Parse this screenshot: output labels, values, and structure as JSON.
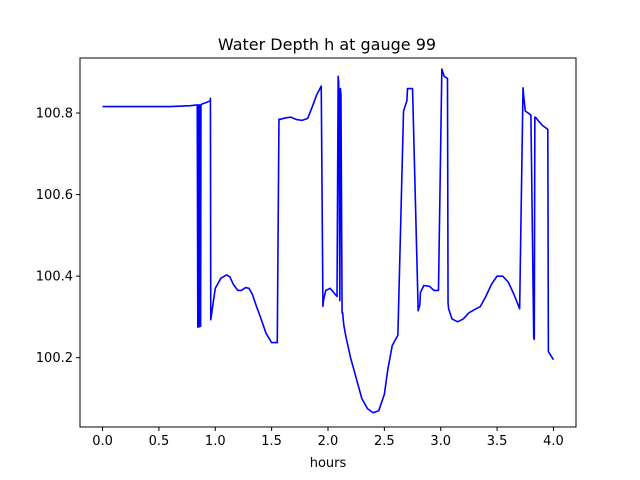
{
  "chart_data": {
    "type": "line",
    "title": "Water Depth h at gauge 99",
    "xlabel": "hours",
    "ylabel": "",
    "xlim": [
      -0.2,
      4.2
    ],
    "ylim": [
      100.03,
      100.935
    ],
    "x_ticks": [
      0.0,
      0.5,
      1.0,
      1.5,
      2.0,
      2.5,
      3.0,
      3.5,
      4.0
    ],
    "x_tick_labels": [
      "0.0",
      "0.5",
      "1.0",
      "1.5",
      "2.0",
      "2.5",
      "3.0",
      "3.5",
      "4.0"
    ],
    "y_ticks": [
      100.2,
      100.4,
      100.6,
      100.8
    ],
    "y_tick_labels": [
      "100.2",
      "100.4",
      "100.6",
      "100.8"
    ],
    "grid": false,
    "legend": "none",
    "series": [
      {
        "color": "#0000ff",
        "x": [
          0.0,
          0.3,
          0.6,
          0.78,
          0.84,
          0.845,
          0.85,
          0.853,
          0.857,
          0.86,
          0.865,
          0.87,
          0.873,
          0.88,
          0.92,
          0.955,
          0.957,
          0.96,
          1.0,
          1.05,
          1.1,
          1.13,
          1.16,
          1.2,
          1.23,
          1.27,
          1.3,
          1.33,
          1.36,
          1.4,
          1.45,
          1.5,
          1.55,
          1.565,
          1.57,
          1.62,
          1.67,
          1.72,
          1.77,
          1.82,
          1.86,
          1.9,
          1.94,
          1.955,
          1.96,
          1.98,
          2.02,
          2.05,
          2.08,
          2.09,
          2.095,
          2.105,
          2.11,
          2.115,
          2.125,
          2.13,
          2.14,
          2.16,
          2.2,
          2.25,
          2.3,
          2.35,
          2.4,
          2.45,
          2.5,
          2.53,
          2.57,
          2.62,
          2.67,
          2.7,
          2.705,
          2.75,
          2.8,
          2.815,
          2.82,
          2.85,
          2.9,
          2.94,
          2.98,
          3.01,
          3.025,
          3.03,
          3.06,
          3.065,
          3.07,
          3.1,
          3.15,
          3.2,
          3.25,
          3.3,
          3.35,
          3.4,
          3.45,
          3.5,
          3.55,
          3.6,
          3.65,
          3.7,
          3.73,
          3.735,
          3.75,
          3.8,
          3.825,
          3.83,
          3.835,
          3.84,
          3.87,
          3.9,
          3.95,
          3.955,
          4.0
        ],
        "values": [
          100.816,
          100.816,
          100.816,
          100.818,
          100.82,
          100.275,
          100.82,
          100.276,
          100.82,
          100.276,
          100.82,
          100.277,
          100.82,
          100.822,
          100.826,
          100.83,
          100.836,
          100.293,
          100.37,
          100.395,
          100.403,
          100.398,
          100.38,
          100.365,
          100.365,
          100.372,
          100.37,
          100.355,
          100.33,
          100.3,
          100.26,
          100.237,
          100.237,
          100.785,
          100.784,
          100.788,
          100.79,
          100.784,
          100.782,
          100.787,
          100.815,
          100.845,
          100.866,
          100.326,
          100.34,
          100.365,
          100.37,
          100.36,
          100.35,
          100.89,
          100.875,
          100.34,
          100.86,
          100.845,
          100.31,
          100.31,
          100.28,
          100.25,
          100.2,
          100.15,
          100.1,
          100.075,
          100.065,
          100.07,
          100.11,
          100.17,
          100.23,
          100.255,
          100.805,
          100.83,
          100.86,
          100.86,
          100.315,
          100.33,
          100.36,
          100.377,
          100.375,
          100.365,
          100.365,
          100.908,
          100.895,
          100.89,
          100.885,
          100.335,
          100.32,
          100.295,
          100.288,
          100.295,
          100.31,
          100.318,
          100.325,
          100.35,
          100.38,
          100.4,
          100.4,
          100.385,
          100.355,
          100.32,
          100.862,
          100.845,
          100.805,
          100.795,
          100.248,
          100.245,
          100.79,
          100.79,
          100.78,
          100.77,
          100.76,
          100.215,
          100.195
        ]
      }
    ]
  }
}
